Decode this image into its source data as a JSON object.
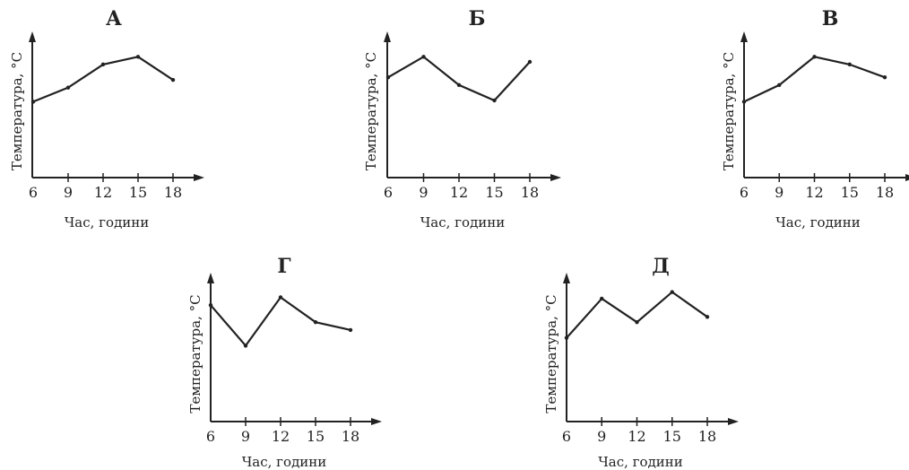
{
  "chart_data": [
    {
      "type": "line",
      "title": "А",
      "xlabel": "Час, години",
      "ylabel": "Температура, °С",
      "x": [
        6,
        9,
        12,
        15,
        18
      ],
      "values": [
        5.9,
        7.0,
        8.8,
        9.4,
        7.6
      ],
      "ylim": [
        0,
        12
      ],
      "grid": false
    },
    {
      "type": "line",
      "title": "Б",
      "xlabel": "Час, години",
      "ylabel": "Температура, °С",
      "x": [
        6,
        9,
        12,
        15,
        18
      ],
      "values": [
        7.8,
        9.4,
        7.2,
        6.0,
        9.0
      ],
      "ylim": [
        0,
        12
      ],
      "grid": false
    },
    {
      "type": "line",
      "title": "В",
      "xlabel": "Час, години",
      "ylabel": "Температура, °С",
      "x": [
        6,
        9,
        12,
        15,
        18
      ],
      "values": [
        5.9,
        7.2,
        9.4,
        8.8,
        7.8
      ],
      "ylim": [
        0,
        12
      ],
      "grid": false
    },
    {
      "type": "line",
      "title": "Г",
      "xlabel": "Час, години",
      "ylabel": "Температура, °С",
      "x": [
        6,
        9,
        12,
        15,
        18
      ],
      "values": [
        8.9,
        5.8,
        9.5,
        7.6,
        7.0
      ],
      "ylim": [
        0,
        12
      ],
      "grid": false
    },
    {
      "type": "line",
      "title": "Д",
      "xlabel": "Час, години",
      "ylabel": "Температура, °С",
      "x": [
        6,
        9,
        12,
        15,
        18
      ],
      "values": [
        6.4,
        9.4,
        7.6,
        9.9,
        8.0
      ],
      "ylim": [
        0,
        12
      ],
      "grid": false
    }
  ],
  "colors": {
    "ink": "#222222"
  }
}
